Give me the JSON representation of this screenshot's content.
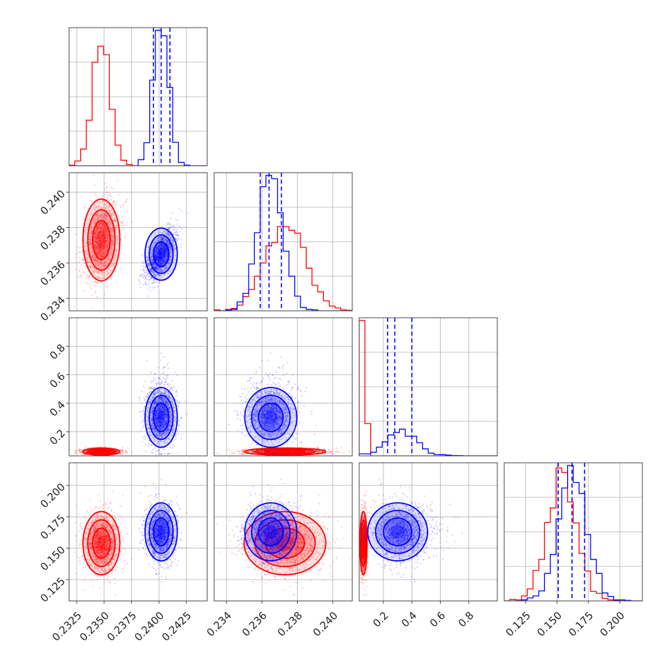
{
  "colors": {
    "series_a": "#ff0000",
    "series_b": "#0000ff",
    "grid": "#b0b0b0",
    "frame": "#444444"
  },
  "chart_data": {
    "type": "scatter",
    "variant": "corner-plot",
    "title": "",
    "grid": true,
    "series": [
      {
        "color": "#ff0000",
        "mean": [
          0.23475,
          0.2373,
          0.06,
          0.154
        ],
        "std": [
          0.0008,
          0.0011,
          0.012,
          0.012
        ],
        "corr": [
          0.3,
          0.0,
          0.0
        ]
      },
      {
        "color": "#0000ff",
        "mean": [
          0.2402,
          0.2365,
          0.3,
          0.163
        ],
        "std": [
          0.0007,
          0.0007,
          0.1,
          0.011
        ],
        "corr": [
          0.65,
          -0.45,
          0.0
        ]
      }
    ],
    "quantiles_blue": [
      [
        0.2395,
        0.2402,
        0.241
      ],
      [
        0.2359,
        0.2364,
        0.2371
      ],
      [
        0.23,
        0.28,
        0.4
      ],
      [
        0.151,
        0.162,
        0.172
      ]
    ],
    "axes": [
      {
        "range": [
          0.2318,
          0.2444
        ],
        "ticks": [
          0.2325,
          0.235,
          0.2375,
          0.24,
          0.2425
        ],
        "tick_labels": [
          "0.2325",
          "0.2350",
          "0.2375",
          "0.2400",
          "0.2425"
        ]
      },
      {
        "range": [
          0.2333,
          0.2411
        ],
        "ticks": [
          0.234,
          0.236,
          0.238,
          0.24
        ],
        "tick_labels": [
          "0.234",
          "0.236",
          "0.238",
          "0.240"
        ]
      },
      {
        "range": [
          0.03,
          1.0
        ],
        "ticks": [
          0.2,
          0.4,
          0.6,
          0.8
        ],
        "tick_labels": [
          "0.2",
          "0.4",
          "0.6",
          "0.8"
        ]
      },
      {
        "range": [
          0.108,
          0.218
        ],
        "ticks": [
          0.125,
          0.15,
          0.175,
          0.2
        ],
        "tick_labels": [
          "0.125",
          "0.150",
          "0.175",
          "0.200"
        ]
      }
    ]
  }
}
